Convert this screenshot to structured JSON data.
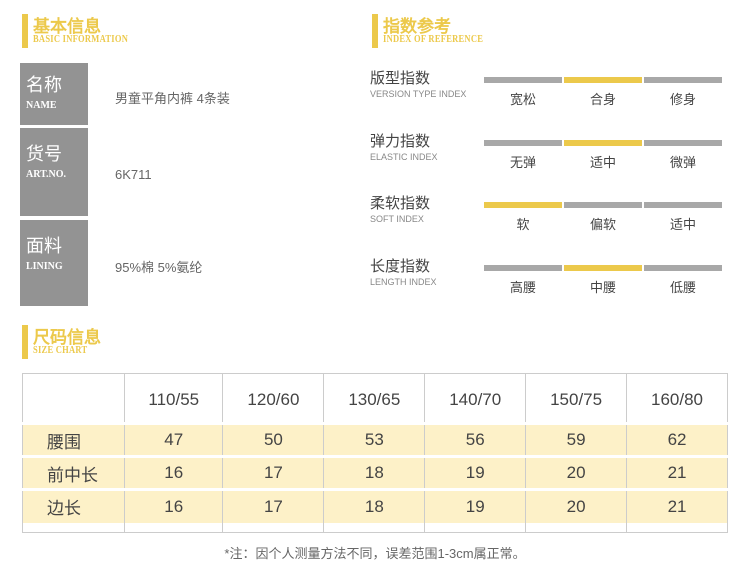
{
  "basic": {
    "title": "基本信息",
    "subtitle": "BASIC INFORMATION",
    "items": [
      {
        "label": "名称",
        "label_en": "NAME",
        "value": "男童平角内裤 4条装"
      },
      {
        "label": "货号",
        "label_en": "ART.NO.",
        "value": "6K711"
      },
      {
        "label": "面料",
        "label_en": "LINING",
        "value": "95%棉 5%氨纶"
      }
    ]
  },
  "reference": {
    "title": "指数参考",
    "subtitle": "INDEX OF REFERENCE",
    "items": [
      {
        "label": "版型指数",
        "label_en": "VERSION TYPE INDEX",
        "options": [
          "宽松",
          "合身",
          "修身"
        ],
        "selected": 1
      },
      {
        "label": "弹力指数",
        "label_en": "ELASTIC INDEX",
        "options": [
          "无弹",
          "适中",
          "微弹"
        ],
        "selected": 1
      },
      {
        "label": "柔软指数",
        "label_en": "SOFT INDEX",
        "options": [
          "软",
          "偏软",
          "适中"
        ],
        "selected": 0
      },
      {
        "label": "长度指数",
        "label_en": "LENGTH INDEX",
        "options": [
          "高腰",
          "中腰",
          "低腰"
        ],
        "selected": 1
      }
    ]
  },
  "size": {
    "title": "尺码信息",
    "subtitle": "SIZE CHART",
    "headers": [
      "110/55",
      "120/60",
      "130/65",
      "140/70",
      "150/75",
      "160/80"
    ],
    "rows": [
      {
        "label": "腰围",
        "values": [
          "47",
          "50",
          "53",
          "56",
          "59",
          "62"
        ]
      },
      {
        "label": "前中长",
        "values": [
          "16",
          "17",
          "18",
          "19",
          "20",
          "21"
        ]
      },
      {
        "label": "边长",
        "values": [
          "16",
          "17",
          "18",
          "19",
          "20",
          "21"
        ]
      }
    ],
    "note": "*注：因个人测量方法不同，误差范围1-3cm属正常。"
  },
  "colors": {
    "accent": "#ecc94b",
    "gray": "#a8a8a8",
    "row": "#fdf1c8"
  }
}
